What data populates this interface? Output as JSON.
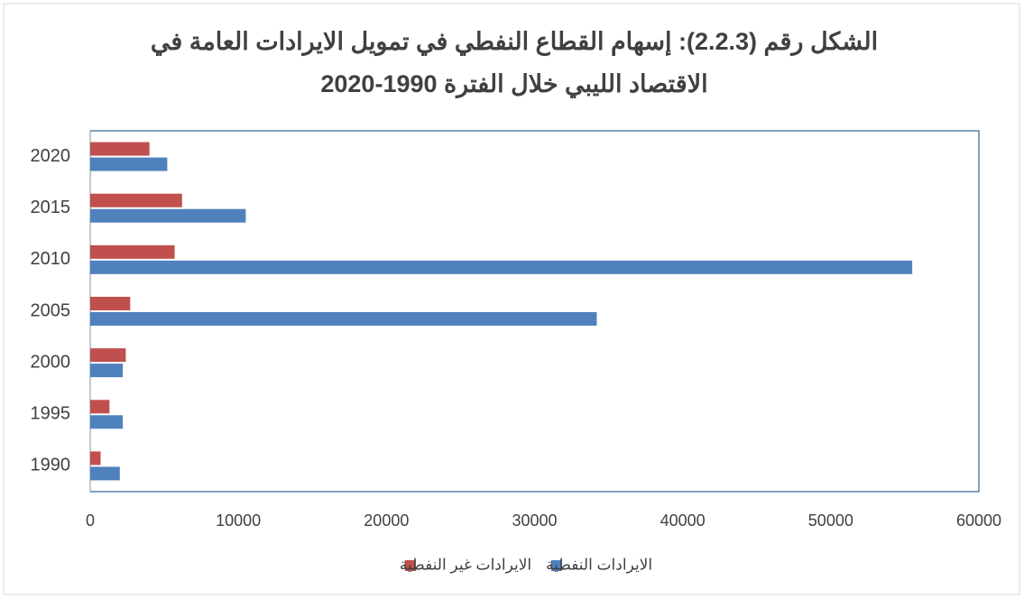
{
  "chart_data": {
    "type": "barh",
    "title": [
      "الشكل رقم (2.2.3): إسهام القطاع النفطي في تمويل الايرادات العامة في",
      "الاقتصاد الليبي خلال الفترة 1990-2020"
    ],
    "categories": [
      "1990",
      "1995",
      "2000",
      "2005",
      "2010",
      "2015",
      "2020"
    ],
    "series": [
      {
        "name": "الايرادات النفطية",
        "color": "#4f81bd",
        "values": [
          2000,
          2200,
          2200,
          34200,
          55500,
          10500,
          5200
        ]
      },
      {
        "name": "الايرادات غير النفطية",
        "color": "#c0504d",
        "values": [
          700,
          1300,
          2400,
          2700,
          5700,
          6200,
          4000
        ]
      }
    ],
    "xlim": [
      0,
      60000
    ],
    "xticks": [
      0,
      10000,
      20000,
      30000,
      40000,
      50000,
      60000
    ],
    "grid": false,
    "legend": "bottom"
  }
}
